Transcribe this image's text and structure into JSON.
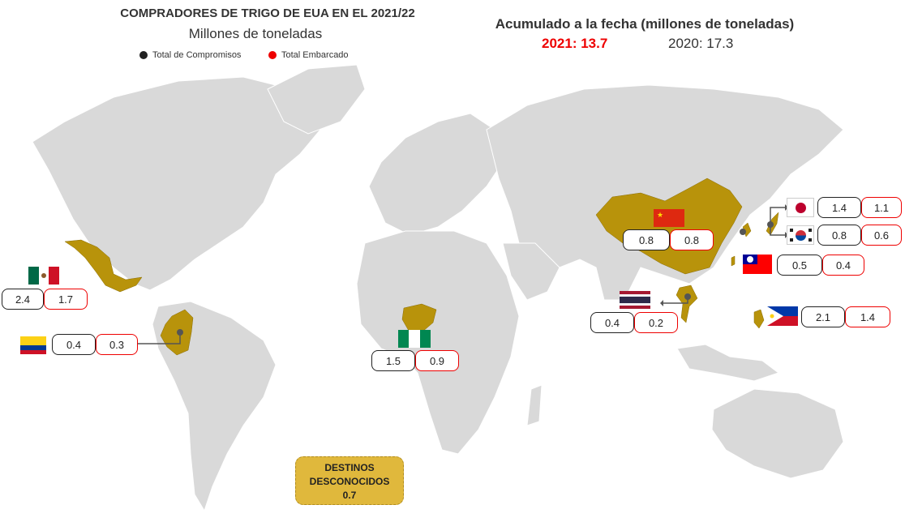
{
  "header": {
    "title": "COMPRADORES DE TRIGO DE EUA EN EL 2021/22",
    "subtitle": "Millones de toneladas",
    "legend_commit": "Total de Compromisos",
    "legend_shipped": "Total Embarcado",
    "accumulated_title": "Acumulado a la fecha (millones de toneladas)",
    "y2021": "2021:  13.7",
    "y2020": "2020:  17.3"
  },
  "colors": {
    "highlight_country": "#b8930b",
    "other_country": "#d9d9d9",
    "commit_border": "#222222",
    "shipped_border": "#e00000",
    "unknown_box": "#e0b83c"
  },
  "countries": {
    "mexico": {
      "commit": "2.4",
      "shipped": "1.7"
    },
    "colombia": {
      "commit": "0.4",
      "shipped": "0.3"
    },
    "nigeria": {
      "commit": "1.5",
      "shipped": "0.9"
    },
    "china": {
      "commit": "0.8",
      "shipped": "0.8"
    },
    "japan": {
      "commit": "1.4",
      "shipped": "1.1"
    },
    "korea": {
      "commit": "0.8",
      "shipped": "0.6"
    },
    "taiwan": {
      "commit": "0.5",
      "shipped": "0.4"
    },
    "thailand": {
      "commit": "0.4",
      "shipped": "0.2"
    },
    "philippines": {
      "commit": "2.1",
      "shipped": "1.4"
    }
  },
  "unknown": {
    "line1": "DESTINOS",
    "line2": "DESCONOCIDOS",
    "value": "0.7"
  }
}
